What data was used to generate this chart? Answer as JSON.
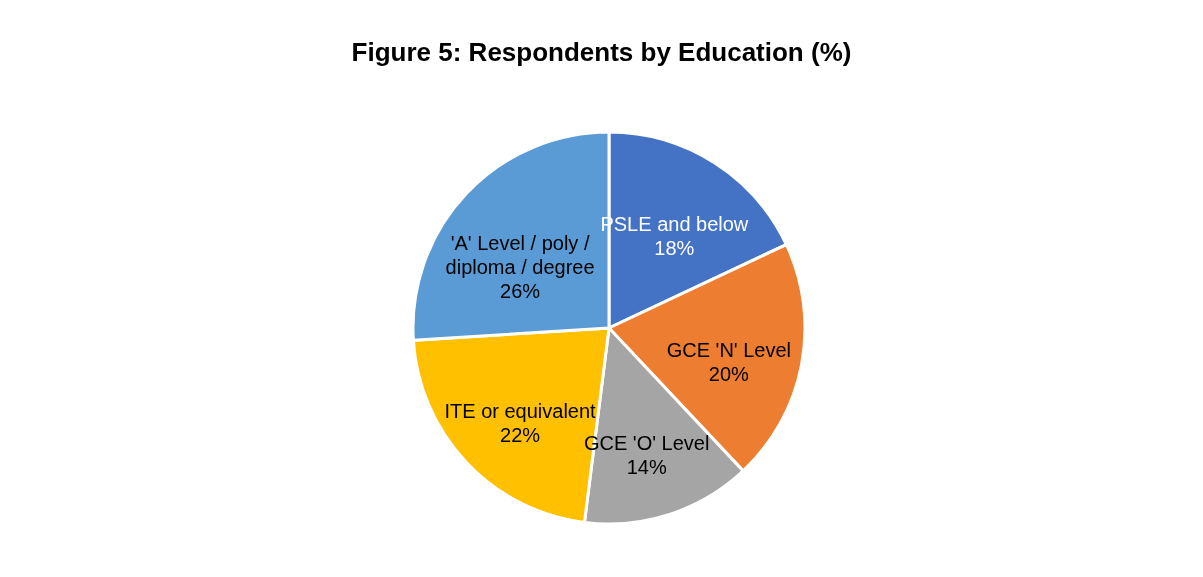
{
  "chart_data": {
    "type": "pie",
    "title": "Figure 5: Respondents by Education (%)",
    "categories": [
      "PSLE and below",
      "GCE 'N' Level",
      "GCE 'O' Level",
      "ITE or equivalent",
      "'A' Level / poly / diploma / degree"
    ],
    "values": [
      18,
      20,
      14,
      22,
      26
    ],
    "colors": [
      "#4472c4",
      "#ed7d31",
      "#a5a5a5",
      "#ffc000",
      "#5b9bd5"
    ],
    "value_labels": [
      "18%",
      "20%",
      "14%",
      "22%",
      "26%"
    ],
    "legend": false
  }
}
